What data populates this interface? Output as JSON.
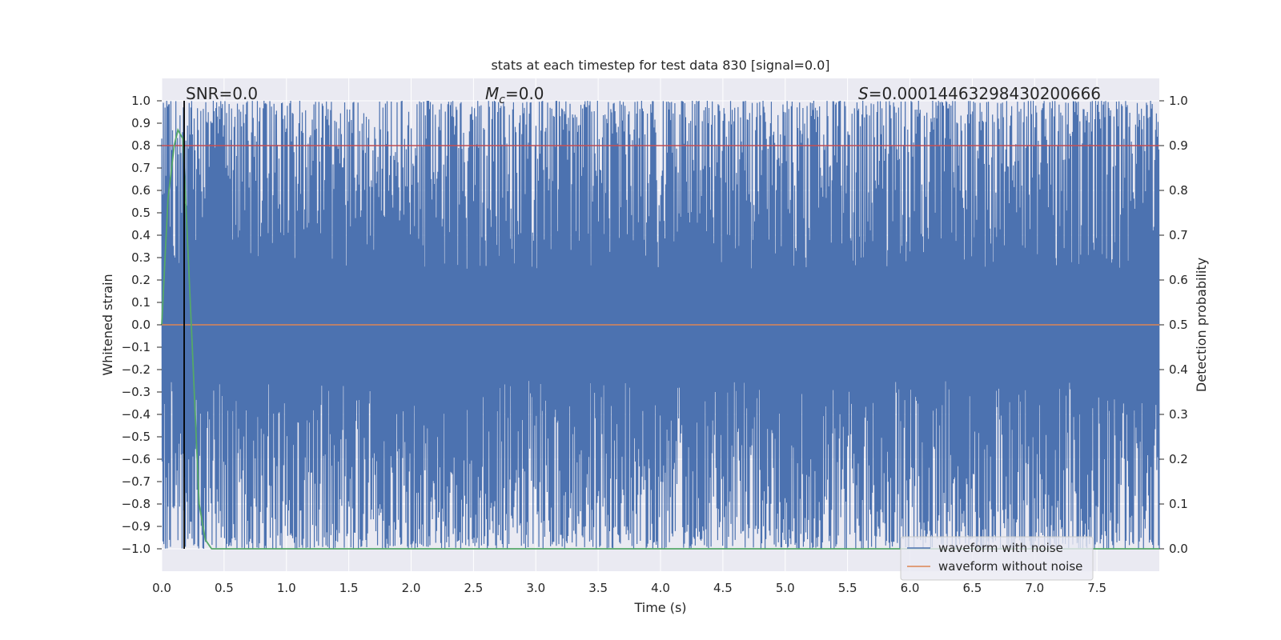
{
  "colors": {
    "background": "#ffffff",
    "plot_bg": "#eaeaf2",
    "grid": "#ffffff",
    "noisy": "#4c72b0",
    "clean": "#dd8452",
    "prob": "#55a868",
    "threshold": "#c44e52",
    "marker": "#000000",
    "text": "#262626"
  },
  "chart_data": {
    "type": "line",
    "title": "stats at each timestep for test data 830 [signal=0.0]",
    "xlabel": "Time (s)",
    "ylabel_left": "Whitened strain",
    "ylabel_right": "Detection probability",
    "xlim": [
      0.0,
      8.0
    ],
    "ylim_left": [
      -1.1,
      1.1
    ],
    "ylim_right": [
      -0.05,
      1.05
    ],
    "xticks": [
      "0.0",
      "0.5",
      "1.0",
      "1.5",
      "2.0",
      "2.5",
      "3.0",
      "3.5",
      "4.0",
      "4.5",
      "5.0",
      "5.5",
      "6.0",
      "6.5",
      "7.0",
      "7.5"
    ],
    "yticks_left": [
      "1.0",
      "0.9",
      "0.8",
      "0.7",
      "0.6",
      "0.5",
      "0.4",
      "0.3",
      "0.2",
      "0.1",
      "0.0",
      "−0.1",
      "−0.2",
      "−0.3",
      "−0.4",
      "−0.5",
      "−0.6",
      "−0.7",
      "−0.8",
      "−0.9",
      "−1.0"
    ],
    "yticks_right": [
      "1.0",
      "0.9",
      "0.8",
      "0.7",
      "0.6",
      "0.5",
      "0.4",
      "0.3",
      "0.2",
      "0.1",
      "0.0"
    ],
    "annotations": {
      "snr": "SNR=0.0",
      "mc_symbol": "M",
      "mc_subscript": "c",
      "mc_value": "=0.0",
      "s_symbol": "S",
      "s_value": "=0.00014463298430200666"
    },
    "marker_time": 0.18,
    "threshold_probability": 0.9,
    "series": [
      {
        "name": "waveform with noise",
        "axis": "left",
        "description": "dense whitened noise spanning roughly -1.0 to 1.0 over 0-8 s",
        "range": [
          -1.0,
          1.0
        ],
        "count": 2400,
        "seed": 830
      },
      {
        "name": "waveform without noise",
        "axis": "left",
        "x": [
          0.0,
          8.0
        ],
        "y": [
          0.0,
          0.0
        ]
      },
      {
        "name": "detection probability",
        "axis": "right",
        "x": [
          0.0,
          0.05,
          0.1,
          0.13,
          0.17,
          0.2,
          0.25,
          0.3,
          0.35,
          0.4,
          8.0
        ],
        "y": [
          0.5,
          0.78,
          0.9,
          0.935,
          0.915,
          0.73,
          0.42,
          0.1,
          0.02,
          0.0,
          0.0
        ]
      }
    ],
    "legend": {
      "placement": "lower-right",
      "entries": [
        "waveform with noise",
        "waveform without noise"
      ]
    }
  }
}
